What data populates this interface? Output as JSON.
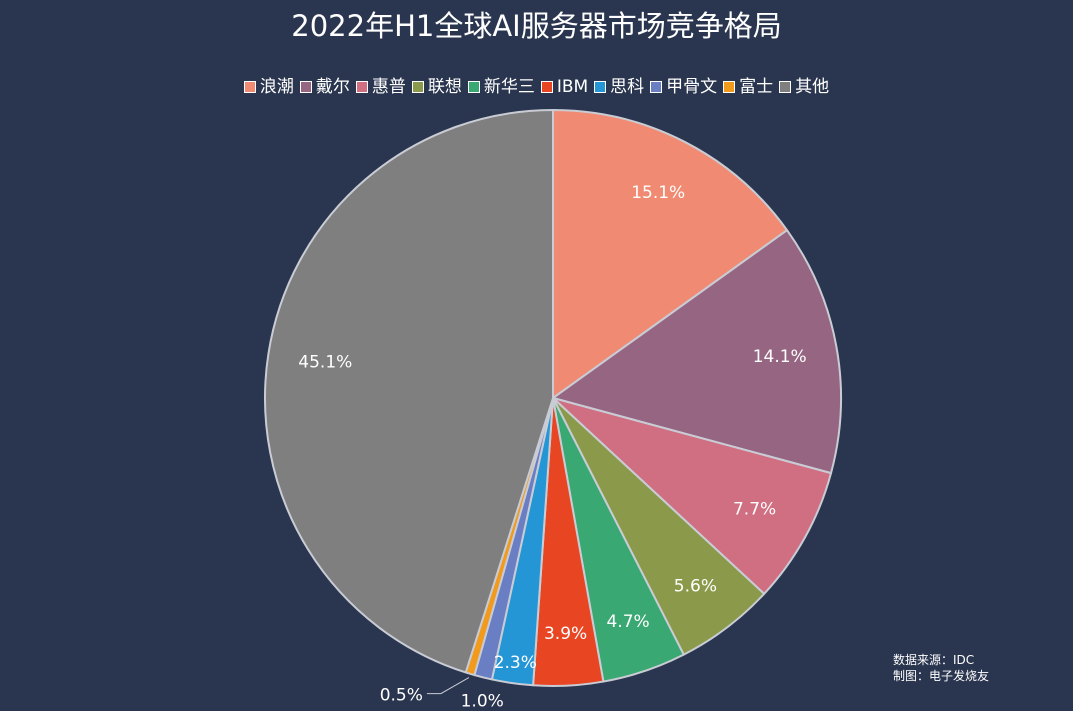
{
  "chart_data": {
    "type": "pie",
    "title": "2022年H1全球AI服务器市场竞争格局",
    "legend_position": "top",
    "categories": [
      "浪潮",
      "戴尔",
      "惠普",
      "联想",
      "新华三",
      "IBM",
      "思科",
      "甲骨文",
      "富士",
      "其他"
    ],
    "values": [
      15.1,
      14.1,
      7.7,
      5.6,
      4.7,
      3.9,
      2.3,
      1.0,
      0.5,
      45.1
    ],
    "labels": [
      "15.1%",
      "14.1%",
      "7.7%",
      "5.6%",
      "4.7%",
      "3.9%",
      "2.3%",
      "1.0%",
      "0.5%",
      "45.1%"
    ],
    "unit": "%",
    "colors": [
      "#f08a72",
      "#966582",
      "#d06e82",
      "#8a9a4a",
      "#3aa872",
      "#e84523",
      "#2496d6",
      "#6a7ec4",
      "#f29a1c",
      "#7f7f7f"
    ]
  },
  "source": {
    "line1": "数据来源：IDC",
    "line2": "制图：电子发烧友"
  }
}
